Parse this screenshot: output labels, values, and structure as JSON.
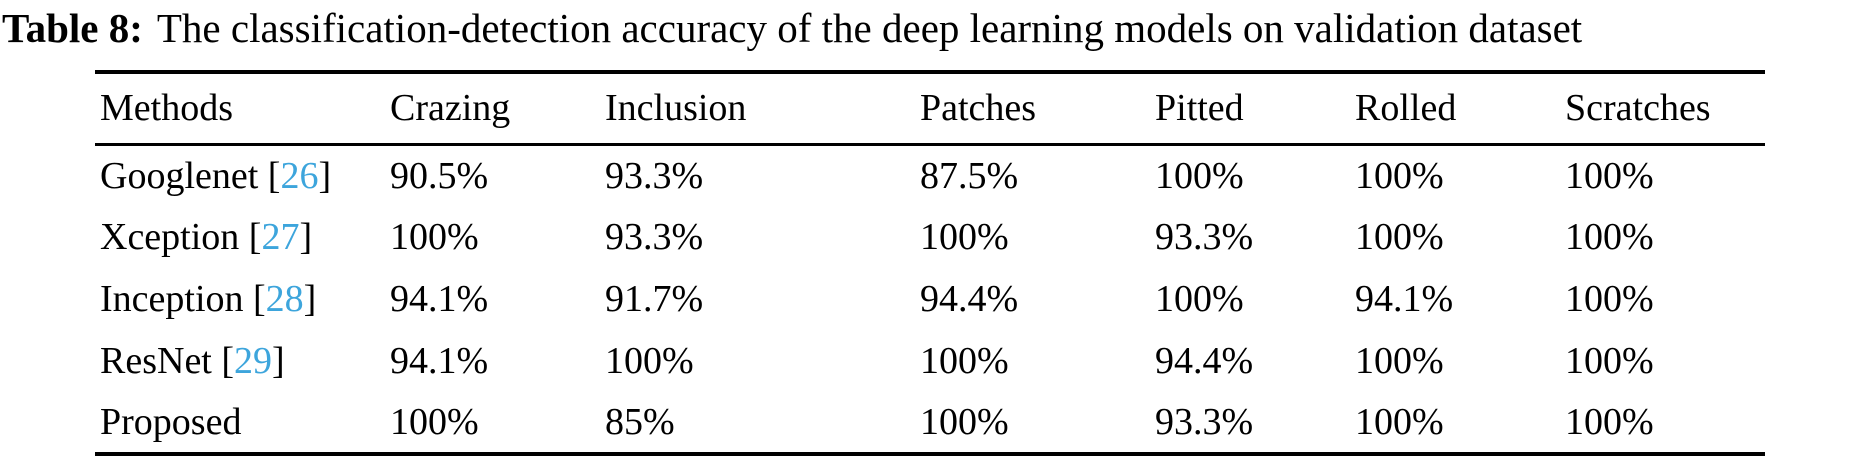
{
  "caption": {
    "label": "Table 8:",
    "text": "The classification-detection accuracy of the deep learning models on validation dataset"
  },
  "table": {
    "columns": [
      "Methods",
      "Crazing",
      "Inclusion",
      "Patches",
      "Pitted",
      "Rolled",
      "Scratches"
    ],
    "rows": [
      {
        "method": "Googlenet",
        "citation": "26",
        "values": [
          "90.5%",
          "93.3%",
          "87.5%",
          "100%",
          "100%",
          "100%"
        ]
      },
      {
        "method": "Xception",
        "citation": "27",
        "values": [
          "100%",
          "93.3%",
          "100%",
          "93.3%",
          "100%",
          "100%"
        ]
      },
      {
        "method": "Inception",
        "citation": "28",
        "values": [
          "94.1%",
          "91.7%",
          "94.4%",
          "100%",
          "94.1%",
          "100%"
        ]
      },
      {
        "method": "ResNet",
        "citation": "29",
        "values": [
          "94.1%",
          "100%",
          "100%",
          "94.4%",
          "100%",
          "100%"
        ]
      },
      {
        "method": "Proposed",
        "citation": null,
        "values": [
          "100%",
          "85%",
          "100%",
          "93.3%",
          "100%",
          "100%"
        ]
      }
    ]
  },
  "colors": {
    "citation_link": "#3DA5DC",
    "text": "#000000",
    "background": "#ffffff"
  }
}
